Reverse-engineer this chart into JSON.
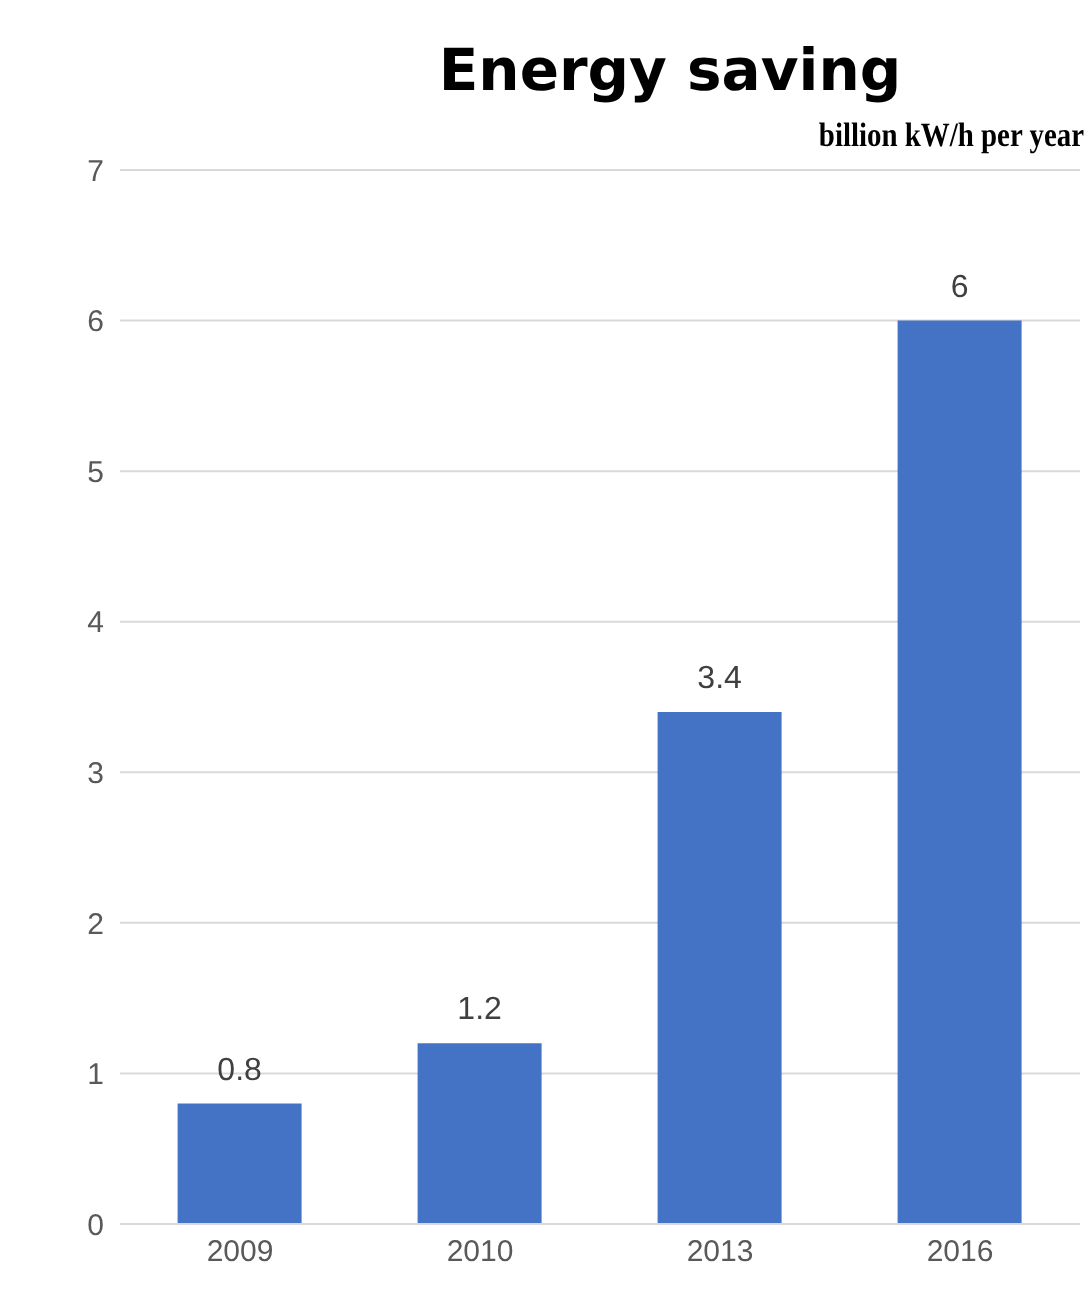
{
  "chart_data": {
    "type": "bar",
    "title": "Energy saving",
    "subtitle": "billion kW/h per year",
    "categories": [
      "2009",
      "2010",
      "2013",
      "2016"
    ],
    "values": [
      0.8,
      1.2,
      3.4,
      6
    ],
    "color": "#4472c4",
    "ylim": [
      0,
      7
    ],
    "yticks": [
      0,
      1,
      2,
      3,
      4,
      5,
      6,
      7
    ],
    "grid": "y",
    "data_labels": true
  }
}
